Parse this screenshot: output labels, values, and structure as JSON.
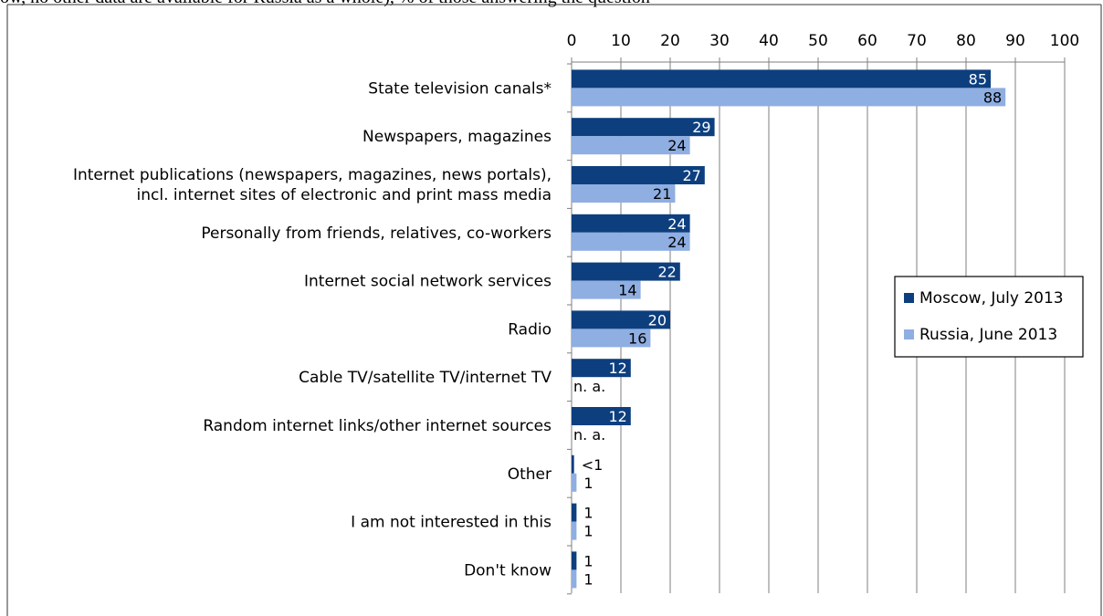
{
  "header_fragment": "ow, no other data are available for Russia as a whole), % of those answering the question",
  "chart_data": {
    "type": "bar",
    "orientation": "horizontal",
    "categories": [
      "State television canals*",
      "Newspapers, magazines",
      "Internet publications (newspapers, magazines, news portals),\nincl. internet sites of electronic and print mass media",
      "Personally from friends, relatives, co-workers",
      "Internet social network services",
      "Radio",
      "Cable TV/satellite TV/internet TV",
      "Random internet links/other internet sources",
      "Other",
      "I am not interested in this",
      "Don't know"
    ],
    "series": [
      {
        "name": "Moscow, July 2013",
        "color": "#0d3f7f",
        "values": [
          85,
          29,
          27,
          24,
          22,
          20,
          12,
          12,
          0.5,
          1,
          1
        ],
        "labels": [
          "85",
          "29",
          "27",
          "24",
          "22",
          "20",
          "12",
          "12",
          "<1",
          "1",
          "1"
        ]
      },
      {
        "name": "Russia, June 2013",
        "color": "#8faee2",
        "values": [
          88,
          24,
          21,
          24,
          14,
          16,
          null,
          null,
          1,
          1,
          1
        ],
        "labels": [
          "88",
          "24",
          "21",
          "24",
          "14",
          "16",
          "n. a.",
          "n. a.",
          "1",
          "1",
          "1"
        ]
      }
    ],
    "xlim": [
      0,
      100
    ],
    "xticks": [
      0,
      10,
      20,
      30,
      40,
      50,
      60,
      70,
      80,
      90,
      100
    ],
    "xaxis_position": "top",
    "grid": true,
    "legend_position": "right"
  }
}
